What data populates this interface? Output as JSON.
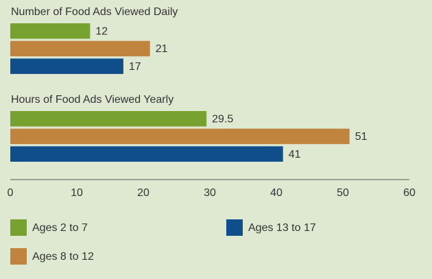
{
  "chart_data": {
    "type": "bar",
    "orientation": "horizontal",
    "categories": [
      "Number of Food Ads Viewed Daily",
      "Hours of Food Ads Viewed Yearly"
    ],
    "series": [
      {
        "name": "Ages 2 to 7",
        "color": "#77a22f",
        "values": [
          12,
          29.5
        ]
      },
      {
        "name": "Ages 8 to 12",
        "color": "#c0843f",
        "values": [
          21,
          51
        ]
      },
      {
        "name": "Ages 13 to 17",
        "color": "#0f4e8a",
        "values": [
          17,
          41
        ]
      }
    ],
    "xlim": [
      0,
      60
    ],
    "xticks": [
      0,
      10,
      20,
      30,
      40,
      50,
      60
    ],
    "grid": false,
    "legend": "bottom"
  }
}
